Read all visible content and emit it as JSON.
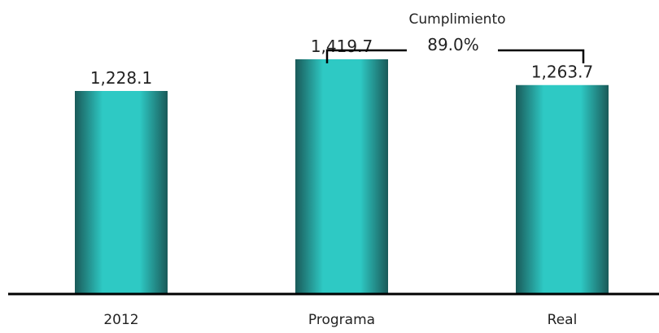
{
  "chart_data": {
    "type": "bar",
    "categories": [
      "2012",
      "Programa",
      "Real"
    ],
    "values": [
      1228.1,
      1419.7,
      1263.7
    ],
    "value_labels": [
      "1,228.1",
      "1,419.7",
      "1,263.7"
    ],
    "ylim": [
      0,
      1680
    ],
    "grid": false,
    "bar_color": "#2ec9c4",
    "bar_edge_color": "#1a5a59",
    "annotation": {
      "label": "Cumplimiento",
      "value": "89.0%",
      "between": [
        "Programa",
        "Real"
      ]
    }
  }
}
